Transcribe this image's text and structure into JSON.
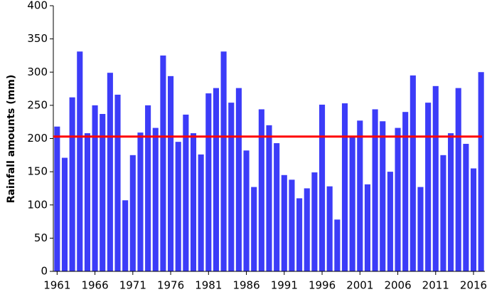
{
  "chart_data": {
    "type": "bar",
    "y_label": "Rainfall amounts (mm)",
    "x": [
      1961,
      1962,
      1963,
      1964,
      1965,
      1966,
      1967,
      1968,
      1969,
      1970,
      1971,
      1972,
      1973,
      1974,
      1975,
      1976,
      1977,
      1978,
      1979,
      1980,
      1981,
      1982,
      1983,
      1984,
      1985,
      1986,
      1987,
      1988,
      1989,
      1990,
      1991,
      1992,
      1993,
      1994,
      1995,
      1996,
      1997,
      1998,
      1999,
      2000,
      2001,
      2002,
      2003,
      2004,
      2005,
      2006,
      2007,
      2008,
      2009,
      2010,
      2011,
      2012,
      2013,
      2014,
      2015,
      2016,
      2017
    ],
    "values": [
      218,
      171,
      262,
      331,
      208,
      250,
      237,
      299,
      266,
      107,
      175,
      209,
      250,
      216,
      325,
      294,
      195,
      236,
      208,
      176,
      268,
      276,
      331,
      254,
      276,
      182,
      127,
      244,
      220,
      193,
      145,
      138,
      110,
      125,
      149,
      251,
      128,
      78,
      253,
      202,
      227,
      131,
      244,
      226,
      150,
      216,
      240,
      295,
      127,
      254,
      279,
      175,
      208,
      276,
      192,
      155,
      300
    ],
    "color": "#3c3cf8",
    "xlim": [
      1960.5,
      2017.5
    ],
    "xticks": [
      1961,
      1966,
      1971,
      1976,
      1981,
      1986,
      1991,
      1996,
      2001,
      2006,
      2011,
      2016
    ],
    "ylim": [
      0,
      400
    ],
    "yticks": [
      0,
      50,
      100,
      150,
      200,
      250,
      300,
      350,
      400
    ],
    "reference_line": {
      "value": 203,
      "color": "#ff0000"
    }
  }
}
